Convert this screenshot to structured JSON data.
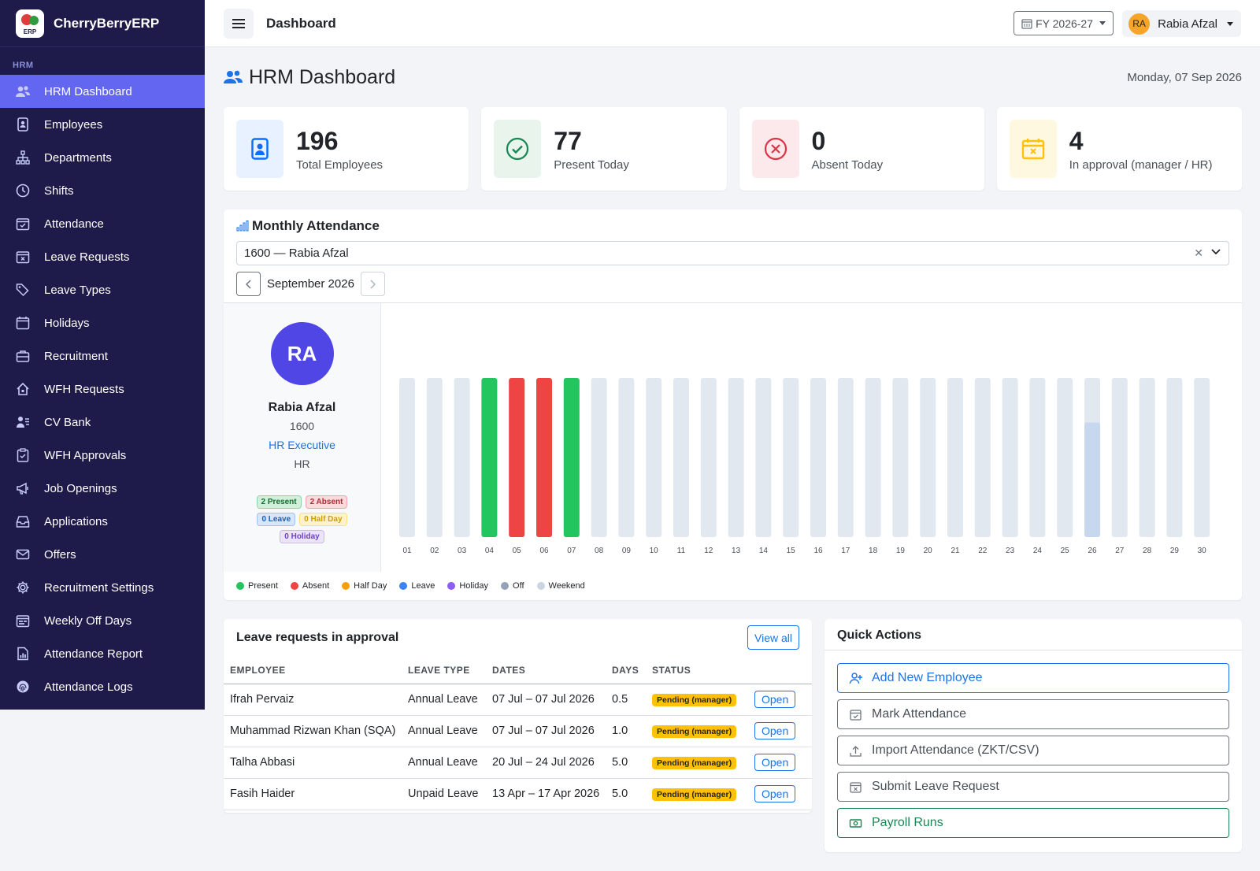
{
  "app": {
    "name": "CherryBerryERP",
    "logo_text": "ERP"
  },
  "sidebar": {
    "section": "HRM",
    "items": [
      {
        "label": "HRM Dashboard",
        "icon": "users-icon",
        "active": true
      },
      {
        "label": "Employees",
        "icon": "id-card-icon"
      },
      {
        "label": "Departments",
        "icon": "sitemap-icon"
      },
      {
        "label": "Shifts",
        "icon": "clock-icon"
      },
      {
        "label": "Attendance",
        "icon": "calendar-check-icon"
      },
      {
        "label": "Leave Requests",
        "icon": "calendar-x-icon"
      },
      {
        "label": "Leave Types",
        "icon": "tags-icon"
      },
      {
        "label": "Holidays",
        "icon": "calendar-icon"
      },
      {
        "label": "Recruitment",
        "icon": "briefcase-icon"
      },
      {
        "label": "WFH Requests",
        "icon": "house-icon"
      },
      {
        "label": "CV Bank",
        "icon": "person-lines-icon"
      },
      {
        "label": "WFH Approvals",
        "icon": "clipboard-check-icon"
      },
      {
        "label": "Job Openings",
        "icon": "megaphone-icon"
      },
      {
        "label": "Applications",
        "icon": "inbox-icon"
      },
      {
        "label": "Offers",
        "icon": "envelope-icon"
      },
      {
        "label": "Recruitment Settings",
        "icon": "gear-icon"
      },
      {
        "label": "Weekly Off Days",
        "icon": "calendar-week-icon"
      },
      {
        "label": "Attendance Report",
        "icon": "report-icon"
      },
      {
        "label": "Attendance Logs",
        "icon": "fingerprint-icon"
      }
    ]
  },
  "topbar": {
    "title": "Dashboard",
    "fy": "FY 2026-27",
    "user_initials": "RA",
    "user_name": "Rabia Afzal"
  },
  "page": {
    "title": "HRM Dashboard",
    "date": "Monday, 07 Sep 2026"
  },
  "stats": [
    {
      "value": "196",
      "label": "Total Employees",
      "color": "#0d6efd",
      "bg": "#e7f1ff",
      "icon": "id-badge-icon"
    },
    {
      "value": "77",
      "label": "Present Today",
      "color": "#198754",
      "bg": "#e8f4ec",
      "icon": "check-circle-icon"
    },
    {
      "value": "0",
      "label": "Absent Today",
      "color": "#dc3545",
      "bg": "#fbe9eb",
      "icon": "x-circle-icon"
    },
    {
      "value": "4",
      "label": "In approval (manager / HR)",
      "color": "#ffc107",
      "bg": "#fff8e1",
      "icon": "calendar-x-icon"
    }
  ],
  "attendance": {
    "title": "Monthly Attendance",
    "employee_select": "1600 — Rabia Afzal",
    "month": "September 2026",
    "profile": {
      "initials": "RA",
      "name": "Rabia Afzal",
      "id": "1600",
      "role": "HR Executive",
      "dept": "HR"
    },
    "badges": {
      "present": "2 Present",
      "absent": "2 Absent",
      "leave": "0 Leave",
      "halfday": "0 Half Day",
      "holiday": "0 Holiday"
    },
    "legend": [
      {
        "label": "Present",
        "color": "#22c55e"
      },
      {
        "label": "Absent",
        "color": "#ef4444"
      },
      {
        "label": "Half Day",
        "color": "#f59e0b"
      },
      {
        "label": "Leave",
        "color": "#3b82f6"
      },
      {
        "label": "Holiday",
        "color": "#8b5cf6"
      },
      {
        "label": "Off",
        "color": "#94a3b8"
      },
      {
        "label": "Weekend",
        "color": "#cbd5e1"
      }
    ]
  },
  "chart_data": {
    "type": "bar",
    "categories": [
      "01",
      "02",
      "03",
      "04",
      "05",
      "06",
      "07",
      "08",
      "09",
      "10",
      "11",
      "12",
      "13",
      "14",
      "15",
      "16",
      "17",
      "18",
      "19",
      "20",
      "21",
      "22",
      "23",
      "24",
      "25",
      "26",
      "27",
      "28",
      "29",
      "30"
    ],
    "status": [
      "none",
      "none",
      "none",
      "present",
      "absent",
      "absent",
      "present",
      "none",
      "none",
      "none",
      "none",
      "none",
      "none",
      "none",
      "none",
      "none",
      "none",
      "none",
      "none",
      "none",
      "none",
      "none",
      "none",
      "none",
      "none",
      "partial",
      "none",
      "none",
      "none",
      "none"
    ],
    "values": [
      1,
      1,
      1,
      1,
      1,
      1,
      1,
      1,
      1,
      1,
      1,
      1,
      1,
      1,
      1,
      1,
      1,
      1,
      1,
      1,
      1,
      1,
      1,
      1,
      1,
      0.72,
      1,
      1,
      1,
      1
    ],
    "colors": {
      "present": "#22c55e",
      "absent": "#ef4444",
      "none": "#e2e8f0",
      "partial": "#c7d7ee"
    }
  },
  "leave_requests": {
    "title": "Leave requests in approval",
    "view_all": "View all",
    "headers": [
      "EMPLOYEE",
      "LEAVE TYPE",
      "DATES",
      "DAYS",
      "STATUS"
    ],
    "rows": [
      {
        "employee": "Ifrah Pervaiz",
        "type": "Annual Leave",
        "dates": "07 Jul – 07 Jul 2026",
        "days": "0.5",
        "status": "Pending (manager)",
        "action": "Open"
      },
      {
        "employee": "Muhammad Rizwan Khan (SQA)",
        "type": "Annual Leave",
        "dates": "07 Jul – 07 Jul 2026",
        "days": "1.0",
        "status": "Pending (manager)",
        "action": "Open"
      },
      {
        "employee": "Talha Abbasi",
        "type": "Annual Leave",
        "dates": "20 Jul – 24 Jul 2026",
        "days": "5.0",
        "status": "Pending (manager)",
        "action": "Open"
      },
      {
        "employee": "Fasih Haider",
        "type": "Unpaid Leave",
        "dates": "13 Apr – 17 Apr 2026",
        "days": "5.0",
        "status": "Pending (manager)",
        "action": "Open"
      }
    ]
  },
  "quick_actions": {
    "title": "Quick Actions",
    "items": [
      {
        "label": "Add New Employee",
        "icon": "person-plus-icon",
        "style": "blue"
      },
      {
        "label": "Mark Attendance",
        "icon": "calendar-check-icon",
        "style": "gray"
      },
      {
        "label": "Import Attendance (ZKT/CSV)",
        "icon": "upload-icon",
        "style": "gray"
      },
      {
        "label": "Submit Leave Request",
        "icon": "calendar-x-icon",
        "style": "gray"
      },
      {
        "label": "Payroll Runs",
        "icon": "cash-icon",
        "style": "green"
      }
    ]
  }
}
